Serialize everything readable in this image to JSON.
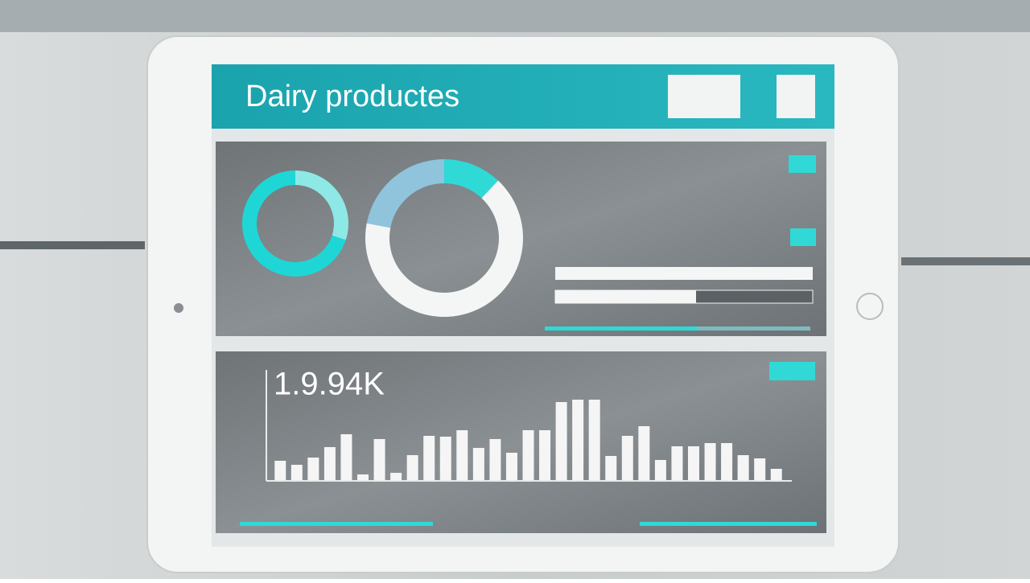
{
  "header": {
    "title": "Dairy productes"
  },
  "chart_data": [
    {
      "type": "pie",
      "values": [
        30,
        70
      ],
      "colors": [
        "#8ee8e6",
        "#1fd6d6"
      ]
    },
    {
      "type": "pie",
      "values": [
        12,
        66,
        22
      ],
      "colors": [
        "#2fd9d6",
        "#f4f6f6",
        "#8fc4dc"
      ]
    },
    {
      "type": "bar",
      "title": "1.9.94K",
      "color": "#f5f5f5",
      "values": [
        24,
        19,
        28,
        41,
        57,
        7,
        51,
        9,
        31,
        55,
        54,
        62,
        40,
        51,
        34,
        62,
        62,
        97,
        100,
        100,
        30,
        55,
        67,
        25,
        42,
        42,
        46,
        46,
        31,
        27,
        14
      ],
      "ylim": [
        0,
        100
      ]
    }
  ]
}
